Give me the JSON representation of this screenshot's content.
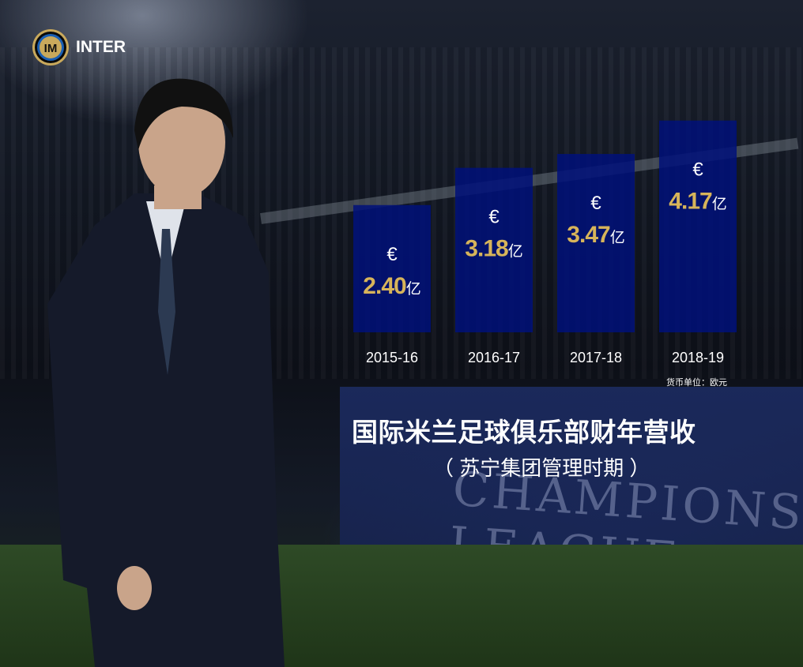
{
  "brand": {
    "name": "INTER",
    "logo_letters": "IM"
  },
  "background_text": "CHAMPIONS LEAGUE",
  "chart_data": {
    "type": "bar",
    "categories": [
      "2015-16",
      "2016-17",
      "2017-18",
      "2018-19"
    ],
    "values": [
      2.4,
      3.18,
      3.47,
      4.17
    ],
    "value_labels": [
      "2.40",
      "3.18",
      "3.47",
      "4.17"
    ],
    "currency_symbol": "€",
    "unit_suffix": "亿",
    "unit_note": "货币单位：欧元",
    "title": "国际米兰足球俱乐部财年营收",
    "subtitle": "（ 苏宁集团管理时期 ）",
    "bar_color": "#00107a",
    "value_color": "#d7b45a",
    "grid": false
  }
}
